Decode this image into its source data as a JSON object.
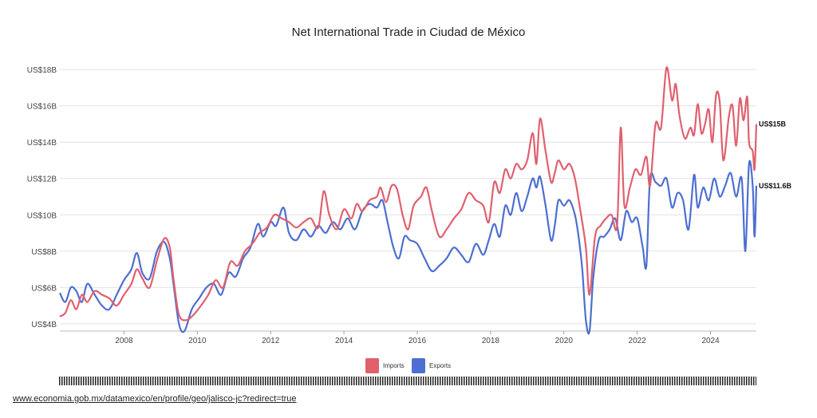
{
  "source_url": "www.economia.gob.mx/datamexico/en/profile/geo/jalisco-jc?redirect=true",
  "colors": {
    "imports": "#e0606e",
    "exports": "#4d6fd1",
    "grid": "#e2e2e2"
  },
  "chart_data": {
    "type": "line",
    "title": "Net International Trade in Ciudad de México",
    "xlabel": "",
    "ylabel": "",
    "xlim": [
      2006.25,
      2025.25
    ],
    "ylim": [
      3.6,
      18.4
    ],
    "y_ticks": [
      4,
      6,
      8,
      10,
      12,
      14,
      16,
      18
    ],
    "y_tick_labels": [
      "US$4B",
      "US$6B",
      "US$8B",
      "US$10B",
      "US$12B",
      "US$14B",
      "US$16B",
      "US$18B"
    ],
    "x_ticks": [
      2008,
      2010,
      2012,
      2014,
      2016,
      2018,
      2020,
      2022,
      2024
    ],
    "x_tick_labels": [
      "2008",
      "2010",
      "2012",
      "2014",
      "2016",
      "2018",
      "2020",
      "2022",
      "2024"
    ],
    "legend_position": "bottom-center",
    "series": [
      {
        "name": "Imports",
        "end_label": "US$15B",
        "points": [
          [
            2006.25,
            4.4
          ],
          [
            2006.4,
            4.6
          ],
          [
            2006.55,
            5.3
          ],
          [
            2006.7,
            4.8
          ],
          [
            2006.85,
            5.6
          ],
          [
            2007.0,
            5.2
          ],
          [
            2007.2,
            5.8
          ],
          [
            2007.4,
            5.6
          ],
          [
            2007.6,
            5.4
          ],
          [
            2007.8,
            5.0
          ],
          [
            2008.0,
            5.6
          ],
          [
            2008.2,
            6.2
          ],
          [
            2008.35,
            7.0
          ],
          [
            2008.5,
            6.5
          ],
          [
            2008.7,
            6.0
          ],
          [
            2008.9,
            7.5
          ],
          [
            2009.1,
            8.7
          ],
          [
            2009.25,
            8.2
          ],
          [
            2009.35,
            6.5
          ],
          [
            2009.5,
            4.5
          ],
          [
            2009.7,
            4.2
          ],
          [
            2009.9,
            4.5
          ],
          [
            2010.1,
            5.0
          ],
          [
            2010.3,
            5.6
          ],
          [
            2010.5,
            6.4
          ],
          [
            2010.7,
            6.0
          ],
          [
            2010.9,
            7.4
          ],
          [
            2011.1,
            7.2
          ],
          [
            2011.3,
            8.0
          ],
          [
            2011.5,
            8.4
          ],
          [
            2011.7,
            9.0
          ],
          [
            2011.9,
            9.3
          ],
          [
            2012.1,
            10.0
          ],
          [
            2012.3,
            9.8
          ],
          [
            2012.5,
            9.6
          ],
          [
            2012.7,
            9.3
          ],
          [
            2012.9,
            9.6
          ],
          [
            2013.1,
            9.8
          ],
          [
            2013.3,
            9.3
          ],
          [
            2013.45,
            11.3
          ],
          [
            2013.6,
            10.0
          ],
          [
            2013.8,
            9.2
          ],
          [
            2014.0,
            10.3
          ],
          [
            2014.2,
            9.8
          ],
          [
            2014.35,
            10.6
          ],
          [
            2014.5,
            10.2
          ],
          [
            2014.7,
            10.8
          ],
          [
            2014.9,
            11.0
          ],
          [
            2015.0,
            11.5
          ],
          [
            2015.15,
            10.7
          ],
          [
            2015.3,
            11.6
          ],
          [
            2015.45,
            11.4
          ],
          [
            2015.6,
            10.0
          ],
          [
            2015.75,
            9.2
          ],
          [
            2015.9,
            10.5
          ],
          [
            2016.1,
            11.0
          ],
          [
            2016.25,
            11.5
          ],
          [
            2016.4,
            10.2
          ],
          [
            2016.6,
            8.8
          ],
          [
            2016.8,
            9.2
          ],
          [
            2017.0,
            9.8
          ],
          [
            2017.2,
            10.3
          ],
          [
            2017.4,
            11.2
          ],
          [
            2017.6,
            10.8
          ],
          [
            2017.8,
            10.5
          ],
          [
            2017.95,
            9.6
          ],
          [
            2018.1,
            11.8
          ],
          [
            2018.25,
            11.2
          ],
          [
            2018.4,
            12.5
          ],
          [
            2018.55,
            12.0
          ],
          [
            2018.7,
            12.8
          ],
          [
            2018.85,
            12.5
          ],
          [
            2019.0,
            13.0
          ],
          [
            2019.15,
            14.5
          ],
          [
            2019.25,
            12.8
          ],
          [
            2019.35,
            15.3
          ],
          [
            2019.5,
            13.5
          ],
          [
            2019.65,
            11.8
          ],
          [
            2019.75,
            12.3
          ],
          [
            2019.85,
            13.0
          ],
          [
            2020.0,
            12.5
          ],
          [
            2020.15,
            12.8
          ],
          [
            2020.3,
            12.0
          ],
          [
            2020.45,
            10.2
          ],
          [
            2020.6,
            8.2
          ],
          [
            2020.7,
            5.6
          ],
          [
            2020.85,
            8.8
          ],
          [
            2021.0,
            9.4
          ],
          [
            2021.15,
            9.8
          ],
          [
            2021.3,
            10.0
          ],
          [
            2021.45,
            9.4
          ],
          [
            2021.55,
            14.8
          ],
          [
            2021.65,
            10.5
          ],
          [
            2021.8,
            11.5
          ],
          [
            2021.95,
            12.5
          ],
          [
            2022.1,
            12.2
          ],
          [
            2022.25,
            13.2
          ],
          [
            2022.35,
            11.6
          ],
          [
            2022.5,
            15.0
          ],
          [
            2022.65,
            14.8
          ],
          [
            2022.8,
            18.1
          ],
          [
            2022.95,
            16.3
          ],
          [
            2023.05,
            17.2
          ],
          [
            2023.15,
            15.5
          ],
          [
            2023.3,
            14.2
          ],
          [
            2023.45,
            14.8
          ],
          [
            2023.55,
            14.4
          ],
          [
            2023.65,
            16.1
          ],
          [
            2023.75,
            14.5
          ],
          [
            2023.85,
            15.0
          ],
          [
            2023.95,
            15.8
          ],
          [
            2024.05,
            14.0
          ],
          [
            2024.15,
            16.6
          ],
          [
            2024.25,
            16.2
          ],
          [
            2024.35,
            13.0
          ],
          [
            2024.5,
            15.4
          ],
          [
            2024.6,
            16.0
          ],
          [
            2024.7,
            13.8
          ],
          [
            2024.8,
            16.4
          ],
          [
            2024.9,
            15.2
          ],
          [
            2025.0,
            16.5
          ],
          [
            2025.05,
            14.0
          ],
          [
            2025.15,
            13.5
          ],
          [
            2025.2,
            12.5
          ],
          [
            2025.25,
            15.0
          ]
        ]
      },
      {
        "name": "Exports",
        "end_label": "US$11.6B",
        "points": [
          [
            2006.25,
            5.7
          ],
          [
            2006.4,
            5.2
          ],
          [
            2006.55,
            6.0
          ],
          [
            2006.7,
            5.8
          ],
          [
            2006.85,
            5.2
          ],
          [
            2007.0,
            6.2
          ],
          [
            2007.2,
            5.6
          ],
          [
            2007.4,
            5.0
          ],
          [
            2007.6,
            4.8
          ],
          [
            2007.8,
            5.6
          ],
          [
            2008.0,
            6.4
          ],
          [
            2008.2,
            7.0
          ],
          [
            2008.35,
            7.9
          ],
          [
            2008.5,
            6.8
          ],
          [
            2008.7,
            6.5
          ],
          [
            2008.9,
            8.0
          ],
          [
            2009.1,
            8.5
          ],
          [
            2009.25,
            7.6
          ],
          [
            2009.35,
            6.2
          ],
          [
            2009.5,
            4.0
          ],
          [
            2009.65,
            3.6
          ],
          [
            2009.85,
            4.8
          ],
          [
            2010.05,
            5.4
          ],
          [
            2010.25,
            6.0
          ],
          [
            2010.45,
            6.2
          ],
          [
            2010.65,
            5.6
          ],
          [
            2010.85,
            6.8
          ],
          [
            2011.05,
            6.6
          ],
          [
            2011.25,
            7.6
          ],
          [
            2011.45,
            8.2
          ],
          [
            2011.65,
            9.5
          ],
          [
            2011.8,
            8.8
          ],
          [
            2012.0,
            9.6
          ],
          [
            2012.15,
            9.4
          ],
          [
            2012.35,
            10.4
          ],
          [
            2012.5,
            9.0
          ],
          [
            2012.7,
            8.6
          ],
          [
            2012.9,
            9.2
          ],
          [
            2013.1,
            8.8
          ],
          [
            2013.3,
            9.4
          ],
          [
            2013.5,
            9.0
          ],
          [
            2013.7,
            9.6
          ],
          [
            2013.9,
            9.2
          ],
          [
            2014.1,
            9.8
          ],
          [
            2014.3,
            9.2
          ],
          [
            2014.5,
            10.2
          ],
          [
            2014.7,
            10.6
          ],
          [
            2014.9,
            10.4
          ],
          [
            2015.05,
            10.8
          ],
          [
            2015.2,
            9.5
          ],
          [
            2015.35,
            8.2
          ],
          [
            2015.5,
            7.6
          ],
          [
            2015.65,
            8.8
          ],
          [
            2015.8,
            8.6
          ],
          [
            2016.0,
            8.4
          ],
          [
            2016.2,
            7.6
          ],
          [
            2016.4,
            6.9
          ],
          [
            2016.6,
            7.2
          ],
          [
            2016.8,
            7.6
          ],
          [
            2017.0,
            8.2
          ],
          [
            2017.2,
            7.8
          ],
          [
            2017.4,
            7.4
          ],
          [
            2017.6,
            8.4
          ],
          [
            2017.8,
            7.8
          ],
          [
            2017.95,
            8.6
          ],
          [
            2018.1,
            9.5
          ],
          [
            2018.25,
            8.8
          ],
          [
            2018.4,
            10.5
          ],
          [
            2018.55,
            10.0
          ],
          [
            2018.7,
            11.2
          ],
          [
            2018.85,
            10.2
          ],
          [
            2019.0,
            11.0
          ],
          [
            2019.15,
            12.0
          ],
          [
            2019.25,
            11.5
          ],
          [
            2019.35,
            12.1
          ],
          [
            2019.5,
            10.5
          ],
          [
            2019.65,
            8.6
          ],
          [
            2019.75,
            9.4
          ],
          [
            2019.85,
            10.8
          ],
          [
            2020.0,
            10.5
          ],
          [
            2020.15,
            10.8
          ],
          [
            2020.3,
            10.0
          ],
          [
            2020.4,
            8.8
          ],
          [
            2020.5,
            7.0
          ],
          [
            2020.6,
            4.2
          ],
          [
            2020.7,
            3.6
          ],
          [
            2020.8,
            6.5
          ],
          [
            2020.95,
            8.6
          ],
          [
            2021.1,
            8.8
          ],
          [
            2021.25,
            9.2
          ],
          [
            2021.4,
            9.8
          ],
          [
            2021.55,
            8.6
          ],
          [
            2021.7,
            10.2
          ],
          [
            2021.85,
            9.6
          ],
          [
            2022.0,
            9.8
          ],
          [
            2022.15,
            8.2
          ],
          [
            2022.25,
            7.2
          ],
          [
            2022.35,
            12.0
          ],
          [
            2022.5,
            11.8
          ],
          [
            2022.65,
            11.6
          ],
          [
            2022.8,
            12.0
          ],
          [
            2022.95,
            10.4
          ],
          [
            2023.1,
            11.2
          ],
          [
            2023.25,
            10.8
          ],
          [
            2023.4,
            9.2
          ],
          [
            2023.55,
            12.2
          ],
          [
            2023.65,
            10.4
          ],
          [
            2023.8,
            11.5
          ],
          [
            2023.95,
            10.8
          ],
          [
            2024.1,
            12.0
          ],
          [
            2024.25,
            11.0
          ],
          [
            2024.4,
            11.6
          ],
          [
            2024.55,
            12.3
          ],
          [
            2024.7,
            11.0
          ],
          [
            2024.85,
            12.0
          ],
          [
            2024.95,
            8.0
          ],
          [
            2025.05,
            12.8
          ],
          [
            2025.15,
            11.6
          ],
          [
            2025.2,
            8.8
          ],
          [
            2025.25,
            11.6
          ]
        ]
      }
    ]
  }
}
